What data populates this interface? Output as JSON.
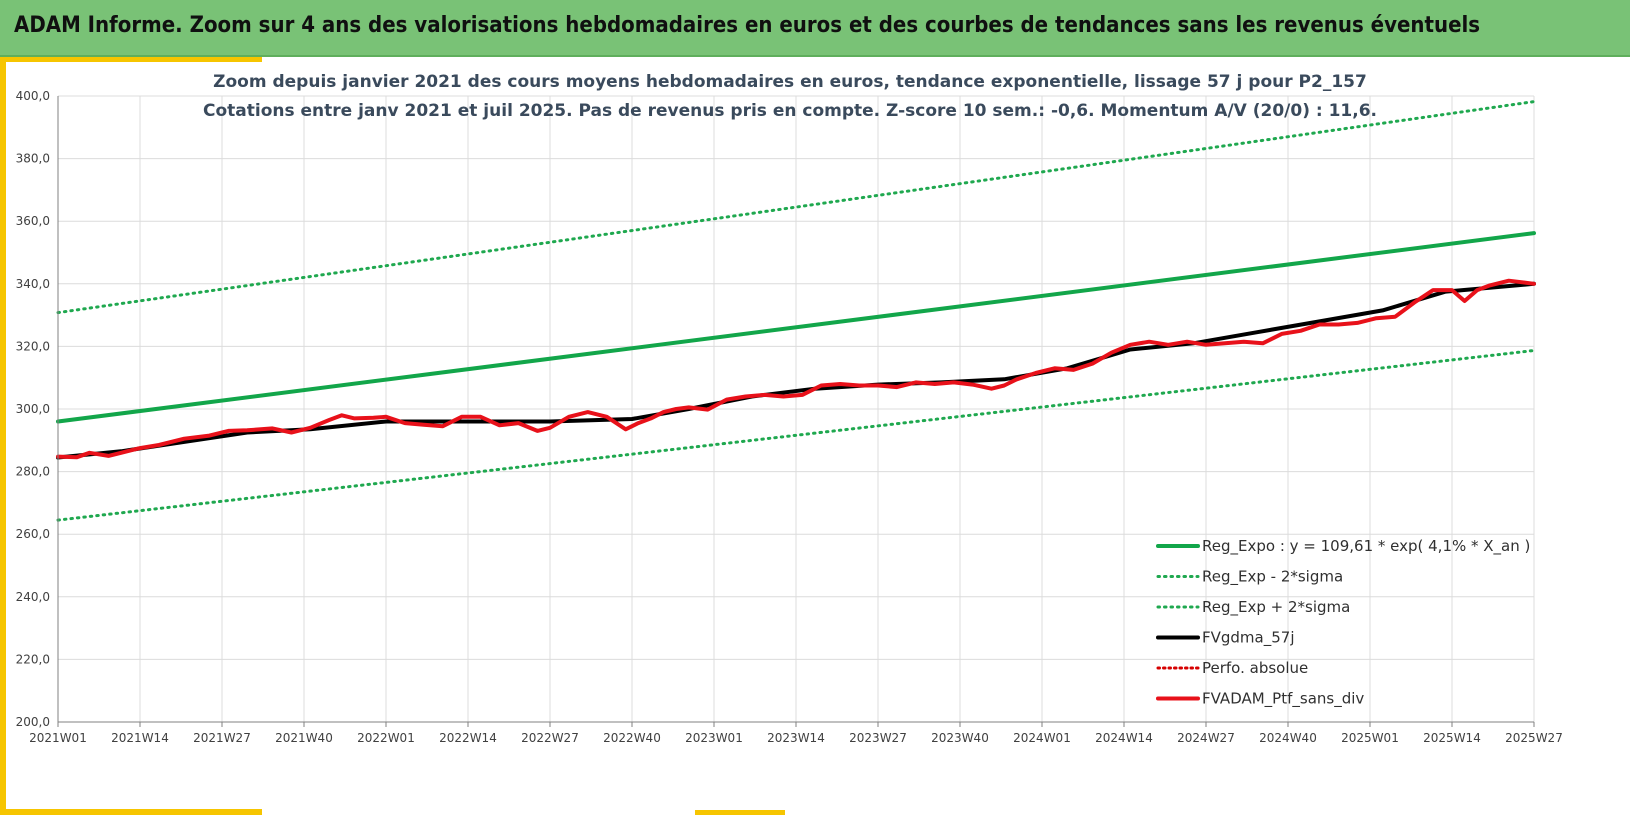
{
  "header": {
    "title": "ADAM Informe. Zoom sur 4 ans des valorisations hebdomadaires en euros et des courbes de tendances sans les revenus éventuels"
  },
  "colors": {
    "banner": "#79c276",
    "accent": "#f6c500",
    "reg_expo": "#12a64a",
    "sigma": "#1fa84f",
    "fvgdma": "#000000",
    "perfo": "#d60000",
    "fvadam": "#e8111a"
  },
  "chart_data": {
    "type": "line",
    "title_line1": "Zoom depuis janvier 2021 des cours moyens hebdomadaires  en euros, tendance exponentielle, lissage 57 j pour P2_157",
    "title_line2": "Cotations entre janv 2021 et juil 2025. Pas de revenus pris en compte. Z-score 10 sem.: -0,6. Momentum A/V (20/0) : 11,6.",
    "ylim": [
      200,
      400
    ],
    "y_ticks": [
      "200,0",
      "220,0",
      "240,0",
      "260,0",
      "280,0",
      "300,0",
      "320,0",
      "340,0",
      "360,0",
      "380,0",
      "400,0"
    ],
    "x_range": [
      0,
      234
    ],
    "x_ticks": [
      "2021W01",
      "2021W14",
      "2021W27",
      "2021W40",
      "2022W01",
      "2022W14",
      "2022W27",
      "2022W40",
      "2023W01",
      "2023W14",
      "2023W27",
      "2023W40",
      "2024W01",
      "2024W14",
      "2024W27",
      "2024W40",
      "2025W01",
      "2025W14",
      "2025W27"
    ],
    "grid": true,
    "legend_position": "bottom-right",
    "series": [
      {
        "name": "Reg_Expo : y = 109,61 * exp( 4,1% *  X_an )",
        "style": "solid",
        "x": [
          0,
          234
        ],
        "values": [
          296.0,
          356.2
        ]
      },
      {
        "name": "Reg_Exp - 2*sigma",
        "style": "dotted",
        "x": [
          0,
          234
        ],
        "values": [
          264.5,
          318.7
        ]
      },
      {
        "name": "Reg_Exp + 2*sigma",
        "style": "dotted",
        "x": [
          0,
          234
        ],
        "values": [
          330.8,
          398.2
        ]
      },
      {
        "name": "FVgdma_57j",
        "style": "solid",
        "x": [
          0,
          10,
          20,
          30,
          40,
          52,
          65,
          78,
          91,
          100,
          110,
          120,
          130,
          140,
          150,
          160,
          170,
          180,
          190,
          200,
          210,
          220,
          234
        ],
        "values": [
          284.5,
          286.5,
          289.5,
          292.5,
          293.5,
          296.0,
          296.0,
          296.0,
          296.8,
          300.0,
          304.0,
          306.5,
          307.8,
          308.5,
          309.5,
          313.0,
          319.0,
          321.0,
          324.5,
          328.0,
          331.5,
          337.5,
          340.0
        ]
      },
      {
        "name": "Perfo. absolue",
        "style": "dotted",
        "x": [],
        "values": []
      },
      {
        "name": "FVADAM_Ptf_sans_div",
        "style": "solid",
        "x": [
          0,
          3,
          5,
          8,
          10,
          13,
          16,
          20,
          24,
          27,
          30,
          34,
          37,
          40,
          43,
          45,
          47,
          50,
          52,
          55,
          58,
          61,
          64,
          67,
          70,
          73,
          76,
          78,
          81,
          84,
          87,
          90,
          92,
          94,
          96,
          98,
          100,
          103,
          106,
          109,
          112,
          115,
          118,
          121,
          124,
          127,
          130,
          133,
          136,
          139,
          142,
          145,
          148,
          150,
          152,
          155,
          158,
          161,
          164,
          167,
          170,
          173,
          176,
          179,
          182,
          185,
          188,
          191,
          194,
          197,
          200,
          203,
          206,
          209,
          212,
          215,
          218,
          221,
          223,
          225,
          227,
          230,
          232,
          234
        ],
        "values": [
          284.8,
          284.6,
          286.0,
          285.0,
          286.0,
          287.5,
          288.5,
          290.5,
          291.5,
          293.0,
          293.2,
          293.8,
          292.5,
          294.0,
          296.5,
          298.0,
          297.0,
          297.2,
          297.5,
          295.5,
          295.0,
          294.5,
          297.5,
          297.5,
          294.8,
          295.5,
          293.0,
          294.0,
          297.5,
          299.0,
          297.5,
          293.5,
          295.5,
          297.0,
          299.0,
          300.0,
          300.5,
          299.8,
          303.0,
          304.0,
          304.5,
          304.0,
          304.5,
          307.5,
          308.0,
          307.5,
          307.5,
          307.0,
          308.5,
          308.0,
          308.5,
          307.8,
          306.5,
          307.5,
          309.5,
          311.5,
          313.0,
          312.5,
          314.5,
          318.0,
          320.5,
          321.5,
          320.5,
          321.5,
          320.5,
          321.0,
          321.5,
          321.0,
          324.0,
          325.0,
          327.0,
          327.0,
          327.5,
          329.0,
          329.5,
          334.0,
          338.0,
          338.0,
          334.5,
          338.0,
          339.5,
          341.0,
          340.5,
          340.0
        ]
      }
    ]
  }
}
